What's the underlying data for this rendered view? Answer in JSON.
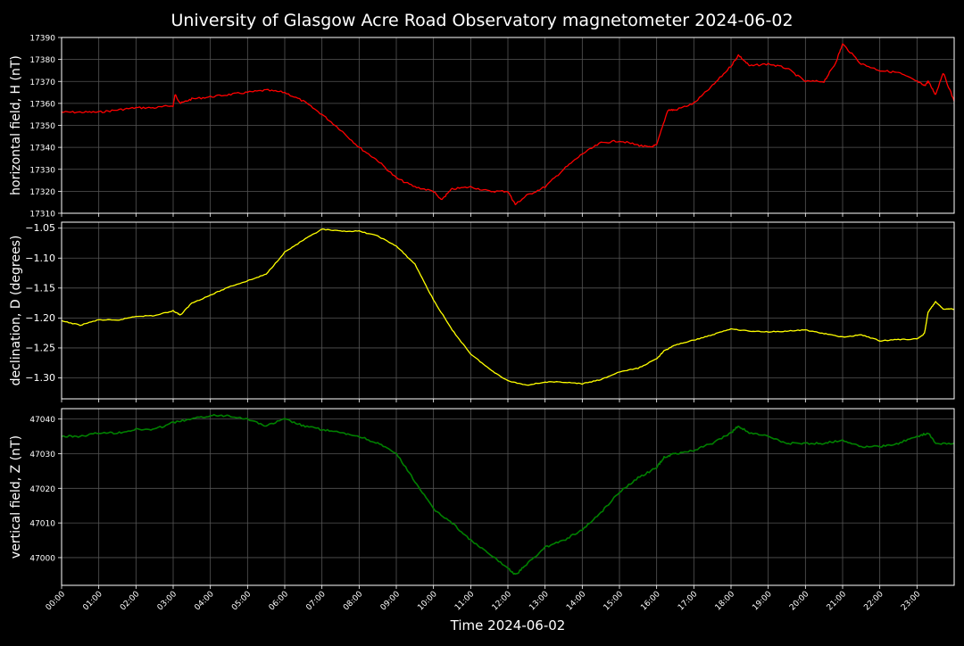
{
  "title": "University of Glasgow Acre Road Observatory magnetometer 2024-06-02",
  "xlabel": "Time 2024-06-02",
  "x_ticks": [
    "00:00",
    "01:00",
    "02:00",
    "03:00",
    "04:00",
    "05:00",
    "06:00",
    "07:00",
    "08:00",
    "09:00",
    "10:00",
    "11:00",
    "12:00",
    "13:00",
    "14:00",
    "15:00",
    "16:00",
    "17:00",
    "18:00",
    "19:00",
    "20:00",
    "21:00",
    "22:00",
    "23:00"
  ],
  "colors": {
    "background": "#000000",
    "grid": "#555555",
    "axes": "#ffffff",
    "H": "#ff0000",
    "D": "#ffff00",
    "Z": "#008000"
  },
  "chart_data": [
    {
      "type": "line",
      "ylabel": "horizontal field, H (nT)",
      "xlim": [
        0,
        24
      ],
      "ylim": [
        17310,
        17390
      ],
      "yticks": [
        17310,
        17320,
        17330,
        17340,
        17350,
        17360,
        17370,
        17380,
        17390
      ],
      "ytick_labels": [
        "17310",
        "17320",
        "17330",
        "17340",
        "17350",
        "17360",
        "17370",
        "17380",
        "17390"
      ],
      "grid": true,
      "series": [
        {
          "color": "#ff0000",
          "x": [
            0,
            0.5,
            1,
            1.5,
            2,
            2.5,
            3,
            3.05,
            3.2,
            3.5,
            4,
            4.5,
            5,
            5.5,
            6,
            6.5,
            7,
            7.5,
            8,
            8.5,
            9,
            9.5,
            10,
            10.2,
            10.5,
            11,
            11.5,
            12,
            12.2,
            12.5,
            13,
            13.5,
            14,
            14.5,
            15,
            15.5,
            15.8,
            16,
            16.3,
            16.5,
            17,
            17.5,
            18,
            18.2,
            18.5,
            19,
            19.5,
            20,
            20.5,
            20.8,
            21,
            21.5,
            22,
            22.5,
            23,
            23.2,
            23.3,
            23.5,
            23.7,
            24
          ],
          "y": [
            17356,
            17356,
            17356,
            17357,
            17358,
            17358,
            17359,
            17364,
            17360,
            17362,
            17363,
            17364,
            17365,
            17366,
            17365,
            17361,
            17355,
            17348,
            17340,
            17334,
            17326,
            17322,
            17320,
            17316,
            17321,
            17322,
            17320,
            17320,
            17314,
            17318,
            17322,
            17330,
            17337,
            17342,
            17343,
            17341,
            17340,
            17341,
            17357,
            17357,
            17360,
            17368,
            17377,
            17382,
            17377,
            17378,
            17376,
            17370,
            17370,
            17378,
            17387,
            17378,
            17375,
            17374,
            17370,
            17368,
            17370,
            17364,
            17374,
            17361
          ]
        }
      ]
    },
    {
      "type": "line",
      "ylabel": "declination, D (degrees)",
      "xlim": [
        0,
        24
      ],
      "ylim": [
        -1.335,
        -1.04
      ],
      "yticks": [
        -1.3,
        -1.25,
        -1.2,
        -1.15,
        -1.1,
        -1.05
      ],
      "ytick_labels": [
        "−1.30",
        "−1.25",
        "−1.20",
        "−1.15",
        "−1.10",
        "−1.05"
      ],
      "grid": true,
      "series": [
        {
          "color": "#ffff00",
          "x": [
            0,
            0.5,
            1,
            1.5,
            2,
            2.5,
            3,
            3.2,
            3.5,
            4,
            4.5,
            5,
            5.5,
            6,
            6.5,
            7,
            7.5,
            8,
            8.5,
            9,
            9.5,
            10,
            10.5,
            11,
            11.5,
            12,
            12.5,
            13,
            13.5,
            14,
            14.5,
            15,
            15.5,
            16,
            16.2,
            16.5,
            17,
            17.5,
            18,
            18.5,
            19,
            19.5,
            20,
            20.5,
            21,
            21.5,
            22,
            22.5,
            23,
            23.2,
            23.3,
            23.5,
            23.7,
            24
          ],
          "y": [
            -1.205,
            -1.212,
            -1.203,
            -1.204,
            -1.197,
            -1.196,
            -1.188,
            -1.195,
            -1.175,
            -1.162,
            -1.148,
            -1.138,
            -1.127,
            -1.09,
            -1.07,
            -1.052,
            -1.055,
            -1.055,
            -1.063,
            -1.08,
            -1.11,
            -1.17,
            -1.22,
            -1.26,
            -1.285,
            -1.305,
            -1.312,
            -1.307,
            -1.307,
            -1.31,
            -1.303,
            -1.29,
            -1.284,
            -1.268,
            -1.255,
            -1.245,
            -1.237,
            -1.228,
            -1.218,
            -1.222,
            -1.223,
            -1.222,
            -1.22,
            -1.226,
            -1.232,
            -1.228,
            -1.238,
            -1.236,
            -1.235,
            -1.226,
            -1.19,
            -1.173,
            -1.185,
            -1.185
          ]
        }
      ]
    },
    {
      "type": "line",
      "ylabel": "vertical field, Z (nT)",
      "xlim": [
        0,
        24
      ],
      "ylim": [
        46992,
        47043
      ],
      "yticks": [
        47000,
        47010,
        47020,
        47030,
        47040
      ],
      "ytick_labels": [
        "47000",
        "47010",
        "47020",
        "47030",
        "47040"
      ],
      "grid": true,
      "series": [
        {
          "color": "#008000",
          "x": [
            0,
            0.5,
            1,
            1.5,
            2,
            2.5,
            3,
            3.5,
            4,
            4.5,
            5,
            5.5,
            6,
            6.5,
            7,
            7.5,
            8,
            8.5,
            9,
            9.5,
            10,
            10.5,
            11,
            11.5,
            12,
            12.2,
            12.5,
            13,
            13.5,
            14,
            14.5,
            15,
            15.5,
            16,
            16.2,
            16.5,
            17,
            17.5,
            18,
            18.2,
            18.5,
            19,
            19.5,
            20,
            20.5,
            21,
            21.5,
            22,
            22.5,
            23,
            23.3,
            23.5,
            24
          ],
          "y": [
            47035,
            47035,
            47036,
            47036,
            47037,
            47037,
            47039,
            47040,
            47041,
            47041,
            47040,
            47038,
            47040,
            47038,
            47037,
            47036,
            47035,
            47033,
            47030,
            47022,
            47014,
            47010,
            47005,
            47001,
            46997,
            46995,
            46998,
            47003,
            47005,
            47008,
            47013,
            47019,
            47023,
            47026,
            47029,
            47030,
            47031,
            47033,
            47036,
            47038,
            47036,
            47035,
            47033,
            47033,
            47033,
            47034,
            47032,
            47032,
            47033,
            47035,
            47036,
            47033,
            47033
          ]
        }
      ]
    }
  ]
}
